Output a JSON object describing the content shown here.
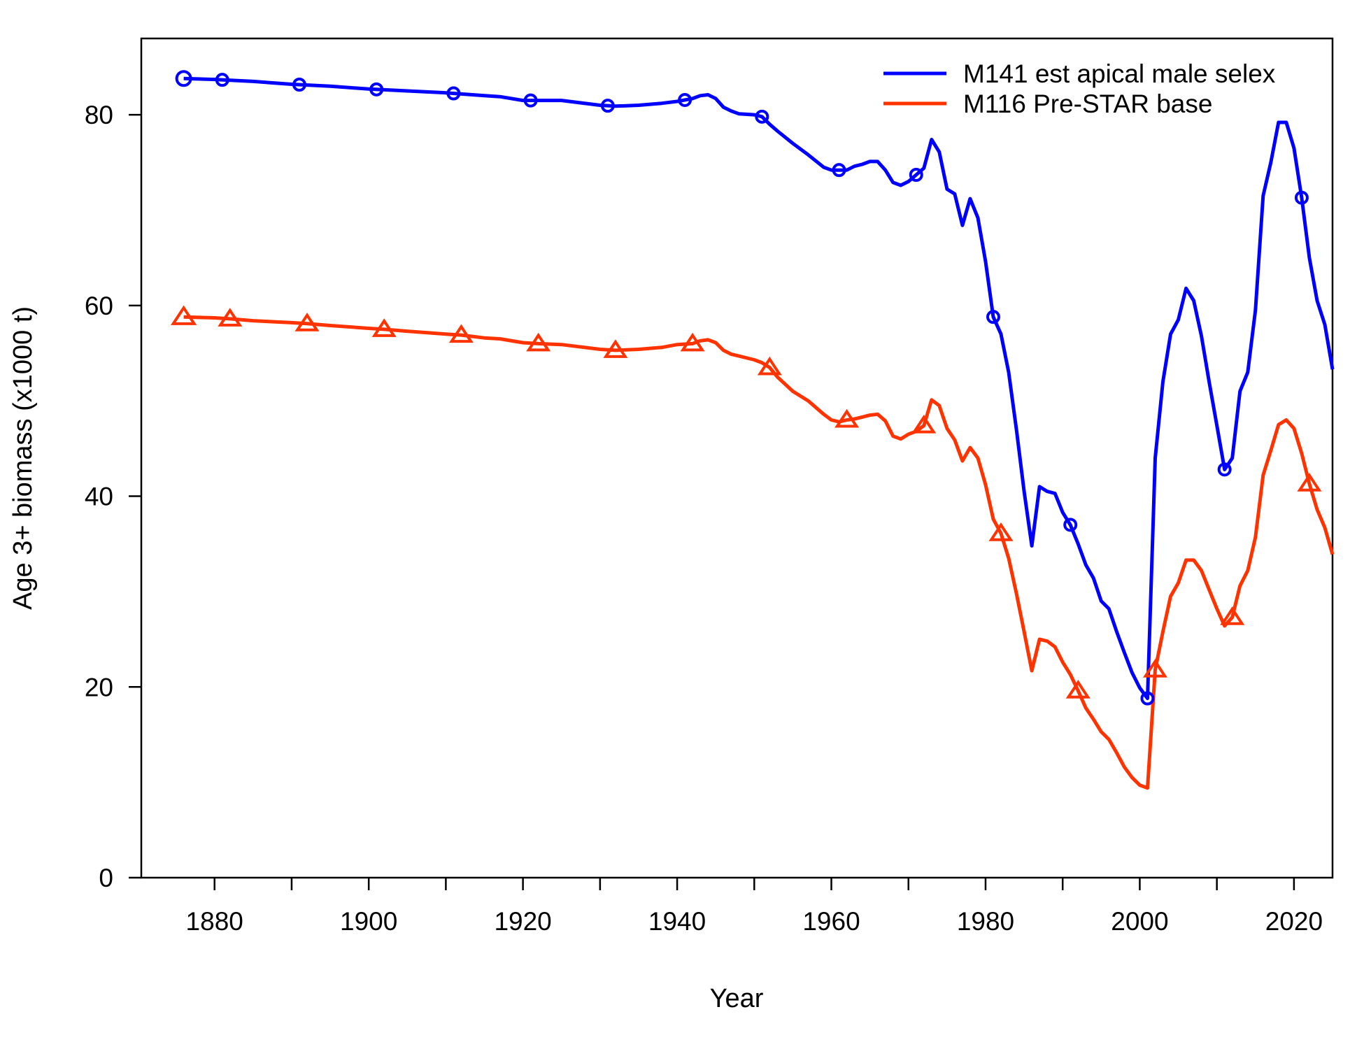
{
  "chart_data": {
    "type": "line",
    "title": "",
    "xlabel": "Year",
    "ylabel": "Age 3+ biomass (x1000 t)",
    "xlim": [
      1870.5,
      2025
    ],
    "ylim": [
      0,
      88
    ],
    "xticks": [
      1880,
      1900,
      1920,
      1940,
      1960,
      1980,
      2000,
      2020
    ],
    "yticks": [
      0,
      20,
      40,
      60,
      80
    ],
    "grid": false,
    "legend_position": "top-right",
    "series": [
      {
        "name": "M141 est apical male selex",
        "color": "#0000ff",
        "marker": "circle",
        "x": [
          1876,
          1880,
          1885,
          1890,
          1895,
          1900,
          1905,
          1910,
          1915,
          1917,
          1920,
          1922,
          1925,
          1930,
          1932,
          1935,
          1938,
          1940,
          1942,
          1943,
          1944,
          1945,
          1946,
          1947,
          1948,
          1950,
          1951,
          1952,
          1953,
          1955,
          1957,
          1959,
          1960,
          1961,
          1962,
          1963,
          1964,
          1965,
          1966,
          1967,
          1968,
          1969,
          1970,
          1971,
          1972,
          1973,
          1974,
          1975,
          1976,
          1977,
          1978,
          1979,
          1980,
          1981,
          1982,
          1983,
          1984,
          1985,
          1986,
          1987,
          1988,
          1989,
          1990,
          1991,
          1992,
          1993,
          1994,
          1995,
          1996,
          1997,
          1998,
          1999,
          2000,
          2001,
          2002,
          2003,
          2004,
          2005,
          2006,
          2007,
          2008,
          2009,
          2010,
          2011,
          2012,
          2013,
          2014,
          2015,
          2016,
          2017,
          2018,
          2019,
          2020,
          2021,
          2022,
          2023,
          2024,
          2025
        ],
        "y": [
          83.8,
          83.7,
          83.5,
          83.2,
          83.0,
          82.7,
          82.5,
          82.3,
          82.0,
          81.9,
          81.5,
          81.5,
          81.5,
          81.0,
          80.9,
          81.0,
          81.2,
          81.4,
          81.7,
          82.0,
          82.1,
          81.7,
          80.8,
          80.4,
          80.1,
          80.0,
          79.8,
          79.0,
          78.3,
          77.0,
          75.8,
          74.5,
          74.2,
          74.2,
          74.2,
          74.6,
          74.8,
          75.1,
          75.1,
          74.2,
          72.9,
          72.6,
          73.0,
          73.7,
          74.4,
          77.4,
          76.1,
          72.2,
          71.7,
          68.4,
          71.2,
          69.2,
          64.6,
          58.8,
          57.0,
          53.0,
          47.0,
          40.5,
          34.8,
          41.0,
          40.5,
          40.3,
          38.3,
          37.0,
          35.0,
          32.8,
          31.4,
          29.0,
          28.2,
          25.8,
          23.6,
          21.5,
          19.9,
          18.8,
          44.0,
          52.0,
          57.0,
          58.5,
          61.8,
          60.5,
          56.8,
          52.0,
          47.4,
          42.8,
          44.0,
          51.0,
          53.0,
          59.5,
          71.5,
          75.0,
          79.2,
          79.2,
          76.5,
          71.3,
          65.0,
          60.5,
          58.0,
          53.3
        ]
      },
      {
        "name": "M116 Pre-STAR base",
        "color": "#ff3300",
        "marker": "triangle",
        "x": [
          1876,
          1880,
          1882,
          1885,
          1890,
          1892,
          1895,
          1900,
          1902,
          1905,
          1910,
          1912,
          1915,
          1917,
          1920,
          1922,
          1925,
          1930,
          1932,
          1935,
          1938,
          1940,
          1942,
          1943,
          1944,
          1945,
          1946,
          1947,
          1948,
          1950,
          1951,
          1952,
          1953,
          1955,
          1957,
          1959,
          1960,
          1961,
          1962,
          1963,
          1964,
          1965,
          1966,
          1967,
          1968,
          1969,
          1970,
          1971,
          1972,
          1973,
          1974,
          1975,
          1976,
          1977,
          1978,
          1979,
          1980,
          1981,
          1982,
          1983,
          1984,
          1985,
          1986,
          1987,
          1988,
          1989,
          1990,
          1991,
          1992,
          1993,
          1994,
          1995,
          1996,
          1997,
          1998,
          1999,
          2000,
          2001,
          2002,
          2003,
          2004,
          2005,
          2006,
          2007,
          2008,
          2009,
          2010,
          2011,
          2012,
          2013,
          2014,
          2015,
          2016,
          2017,
          2018,
          2019,
          2020,
          2021,
          2022,
          2023,
          2024,
          2025
        ],
        "y": [
          58.8,
          58.7,
          58.6,
          58.4,
          58.2,
          58.1,
          57.9,
          57.6,
          57.5,
          57.3,
          57.0,
          56.9,
          56.6,
          56.5,
          56.1,
          56.0,
          55.9,
          55.4,
          55.3,
          55.4,
          55.6,
          55.9,
          56.0,
          56.3,
          56.4,
          56.1,
          55.3,
          54.9,
          54.7,
          54.3,
          54.0,
          53.5,
          52.5,
          51.0,
          50.0,
          48.6,
          48.0,
          47.8,
          48.0,
          48.1,
          48.3,
          48.5,
          48.6,
          47.9,
          46.3,
          46.0,
          46.5,
          46.8,
          47.4,
          50.1,
          49.5,
          47.1,
          45.9,
          43.7,
          45.1,
          44.0,
          41.2,
          37.6,
          36.1,
          33.5,
          29.8,
          25.8,
          21.7,
          25.0,
          24.8,
          24.2,
          22.6,
          21.3,
          19.6,
          17.8,
          16.6,
          15.3,
          14.5,
          13.1,
          11.6,
          10.5,
          9.7,
          9.4,
          21.8,
          25.8,
          29.5,
          30.9,
          33.3,
          33.3,
          32.2,
          30.2,
          28.2,
          26.4,
          27.3,
          30.6,
          32.2,
          35.7,
          42.2,
          44.8,
          47.5,
          48.0,
          47.1,
          44.5,
          41.3,
          38.6,
          36.7,
          33.9
        ]
      }
    ]
  }
}
